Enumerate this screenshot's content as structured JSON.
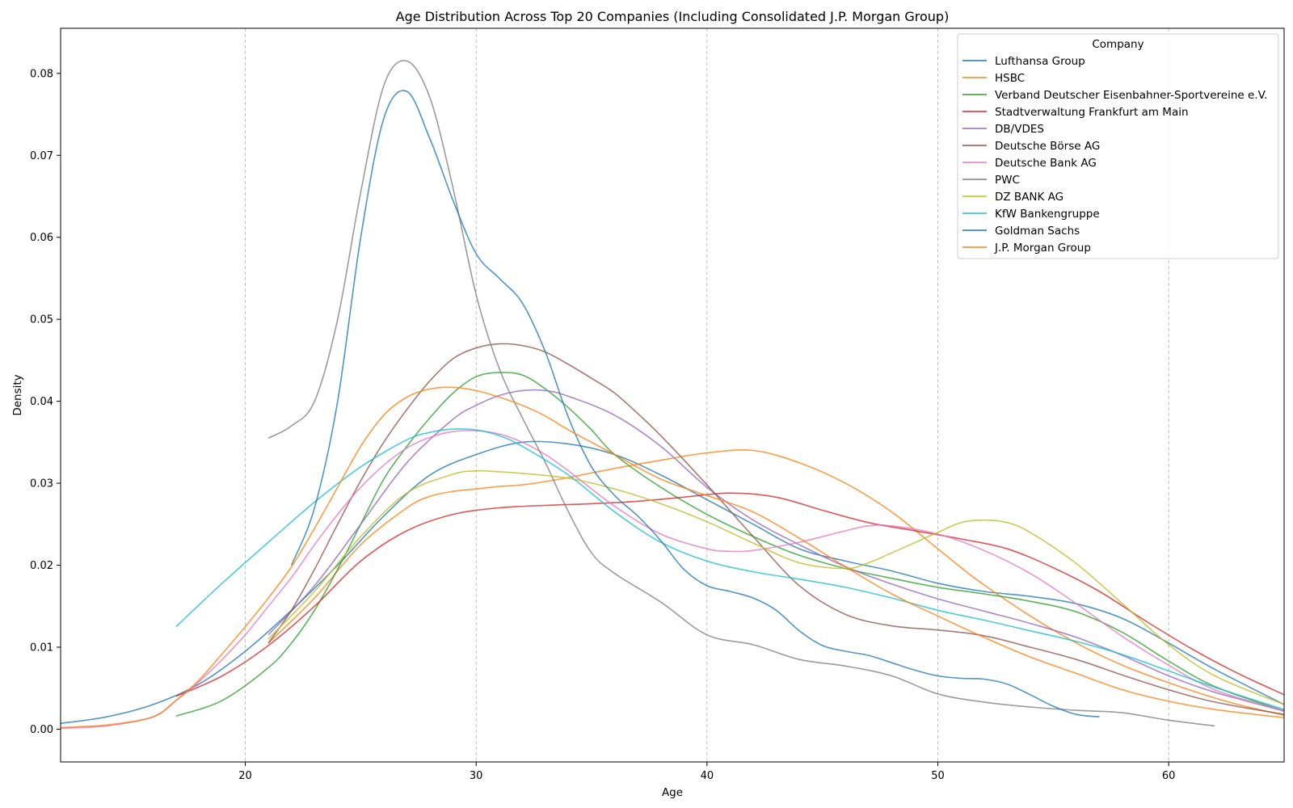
{
  "chart_data": {
    "type": "line",
    "title": "Age Distribution Across Top 20 Companies (Including Consolidated J.P. Morgan Group)",
    "xlabel": "Age",
    "ylabel": "Density",
    "xlim": [
      12,
      65
    ],
    "ylim": [
      -0.004,
      0.0855
    ],
    "xticks": [
      20,
      30,
      40,
      50,
      60
    ],
    "yticks": [
      0.0,
      0.01,
      0.02,
      0.03,
      0.04,
      0.05,
      0.06,
      0.07,
      0.08
    ],
    "grid": "x-dashed",
    "legend_title": "Company",
    "legend_position": "top-right",
    "series": [
      {
        "name": "Lufthansa Group",
        "color": "#1f77b4",
        "x": [
          12,
          14,
          16,
          18,
          20,
          22,
          24,
          26,
          28,
          30,
          32,
          34,
          36,
          38,
          40,
          42,
          44,
          46,
          48,
          50,
          52,
          54,
          56,
          58,
          60,
          62,
          65
        ],
        "y": [
          0.0007,
          0.0015,
          0.003,
          0.0055,
          0.0095,
          0.0145,
          0.02,
          0.026,
          0.031,
          0.0335,
          0.035,
          0.0348,
          0.0335,
          0.031,
          0.028,
          0.025,
          0.022,
          0.0205,
          0.0193,
          0.0178,
          0.0168,
          0.0162,
          0.0153,
          0.0135,
          0.0105,
          0.0073,
          0.003
        ]
      },
      {
        "name": "HSBC",
        "color": "#ff7f0e",
        "x": [
          21,
          23,
          25,
          27,
          28,
          29,
          30,
          31,
          32,
          33,
          34,
          36,
          38,
          40,
          42,
          44,
          46,
          48,
          50,
          52,
          55,
          58,
          62,
          65
        ],
        "y": [
          0.0105,
          0.016,
          0.0225,
          0.027,
          0.0284,
          0.029,
          0.0293,
          0.0296,
          0.0298,
          0.0302,
          0.0307,
          0.0318,
          0.0328,
          0.0337,
          0.034,
          0.0325,
          0.03,
          0.0265,
          0.022,
          0.0176,
          0.0121,
          0.0078,
          0.0038,
          0.0017
        ]
      },
      {
        "name": "Verband Deutscher Eisenbahner-Sportvereine e.V.",
        "color": "#2ca02c",
        "x": [
          17,
          19,
          21,
          22,
          23,
          24,
          25,
          26,
          27,
          28,
          29,
          30,
          31,
          32,
          33,
          34,
          35,
          36,
          38,
          40,
          42,
          44,
          46,
          48,
          50,
          52,
          54,
          56,
          58,
          60,
          62,
          65
        ],
        "y": [
          0.0016,
          0.0035,
          0.0075,
          0.0105,
          0.0145,
          0.0195,
          0.025,
          0.0305,
          0.0345,
          0.038,
          0.041,
          0.043,
          0.0435,
          0.0432,
          0.0415,
          0.0392,
          0.0365,
          0.0335,
          0.0295,
          0.0262,
          0.0235,
          0.0212,
          0.0196,
          0.0184,
          0.0173,
          0.0165,
          0.0156,
          0.0143,
          0.0118,
          0.0083,
          0.0052,
          0.0022
        ]
      },
      {
        "name": "Stadtverwaltung Frankfurt am Main",
        "color": "#d62728",
        "x": [
          17,
          19,
          21,
          23,
          25,
          27,
          29,
          31,
          33,
          35,
          37,
          39,
          41,
          43,
          45,
          47,
          49,
          51,
          53,
          55,
          57,
          59,
          61,
          63,
          65
        ],
        "y": [
          0.004,
          0.0065,
          0.0102,
          0.015,
          0.0205,
          0.0242,
          0.0262,
          0.027,
          0.0273,
          0.0275,
          0.0278,
          0.0283,
          0.0288,
          0.0283,
          0.0267,
          0.0252,
          0.0242,
          0.0232,
          0.022,
          0.0197,
          0.0168,
          0.0132,
          0.0098,
          0.0068,
          0.0042
        ]
      },
      {
        "name": "DB/VDES",
        "color": "#9467bd",
        "x": [
          21,
          23,
          25,
          27,
          29,
          30,
          31,
          32,
          33,
          34,
          36,
          38,
          40,
          42,
          44,
          46,
          48,
          50,
          52,
          54,
          56,
          58,
          60,
          62,
          65
        ],
        "y": [
          0.0115,
          0.0175,
          0.025,
          0.0325,
          0.0378,
          0.0395,
          0.0407,
          0.0413,
          0.0413,
          0.0406,
          0.0383,
          0.0345,
          0.0295,
          0.0255,
          0.0225,
          0.0198,
          0.0177,
          0.0159,
          0.0144,
          0.0129,
          0.0112,
          0.009,
          0.0065,
          0.0045,
          0.0022
        ]
      },
      {
        "name": "Deutsche Börse AG",
        "color": "#8c564b",
        "x": [
          21,
          22,
          23,
          24,
          25,
          26,
          27,
          28,
          29,
          30,
          31,
          32,
          33,
          34,
          35,
          36,
          37,
          38,
          40,
          42,
          44,
          46,
          48,
          50,
          52,
          54,
          56,
          58,
          60,
          62,
          65
        ],
        "y": [
          0.0105,
          0.0145,
          0.0195,
          0.025,
          0.0303,
          0.035,
          0.039,
          0.0425,
          0.0452,
          0.0465,
          0.047,
          0.0468,
          0.046,
          0.0445,
          0.0428,
          0.041,
          0.0385,
          0.0358,
          0.0298,
          0.0235,
          0.0175,
          0.014,
          0.0126,
          0.0121,
          0.0114,
          0.01,
          0.0085,
          0.0066,
          0.0048,
          0.0033,
          0.0018
        ]
      },
      {
        "name": "Deutsche Bank AG",
        "color": "#e377c2",
        "x": [
          12,
          14,
          16,
          17,
          18,
          19,
          20,
          21,
          22,
          23,
          24,
          25,
          26,
          27,
          28,
          29,
          30,
          31,
          32,
          33,
          34,
          36,
          38,
          40,
          41,
          42,
          44,
          46,
          47,
          48,
          50,
          52,
          54,
          56,
          58,
          60,
          62,
          65
        ],
        "y": [
          0.0001,
          0.0004,
          0.0015,
          0.0035,
          0.0058,
          0.0085,
          0.0115,
          0.015,
          0.0185,
          0.0225,
          0.0262,
          0.0295,
          0.0322,
          0.0343,
          0.0356,
          0.0363,
          0.0364,
          0.036,
          0.035,
          0.0335,
          0.0315,
          0.0272,
          0.0238,
          0.022,
          0.0217,
          0.0218,
          0.0228,
          0.0242,
          0.0248,
          0.0248,
          0.0238,
          0.0218,
          0.019,
          0.0153,
          0.0113,
          0.0078,
          0.0048,
          0.0022
        ]
      },
      {
        "name": "PWC",
        "color": "#7f7f7f",
        "x": [
          21,
          22,
          23,
          24,
          25,
          26,
          27,
          28,
          29,
          30,
          31,
          32,
          33,
          34,
          35,
          36,
          38,
          40,
          42,
          44,
          46,
          48,
          50,
          52,
          54,
          56,
          58,
          60,
          62
        ],
        "y": [
          0.0355,
          0.037,
          0.04,
          0.05,
          0.0655,
          0.0785,
          0.0815,
          0.077,
          0.066,
          0.053,
          0.044,
          0.038,
          0.0325,
          0.0265,
          0.0215,
          0.019,
          0.0155,
          0.0115,
          0.0103,
          0.0085,
          0.0077,
          0.0065,
          0.0043,
          0.0033,
          0.0027,
          0.0023,
          0.002,
          0.0011,
          0.0004
        ]
      },
      {
        "name": "DZ BANK AG",
        "color": "#bcbd22",
        "x": [
          21,
          23,
          25,
          27,
          29,
          30,
          31,
          32,
          34,
          36,
          38,
          40,
          42,
          44,
          46,
          47,
          48,
          50,
          51,
          52,
          53,
          54,
          56,
          58,
          60,
          62,
          65
        ],
        "y": [
          0.011,
          0.0168,
          0.0235,
          0.0288,
          0.0311,
          0.0315,
          0.0314,
          0.0312,
          0.0306,
          0.0293,
          0.0275,
          0.0253,
          0.0227,
          0.0203,
          0.0196,
          0.0203,
          0.0215,
          0.024,
          0.0252,
          0.0255,
          0.0252,
          0.024,
          0.0202,
          0.0153,
          0.0103,
          0.0065,
          0.003
        ]
      },
      {
        "name": "KfW Bankengruppe",
        "color": "#17becf",
        "x": [
          17,
          19,
          21,
          23,
          25,
          27,
          28,
          29,
          30,
          31,
          32,
          34,
          36,
          38,
          40,
          42,
          44,
          46,
          48,
          50,
          52,
          54,
          56,
          58,
          60,
          62,
          65
        ],
        "y": [
          0.0125,
          0.0178,
          0.0228,
          0.0277,
          0.032,
          0.0353,
          0.0362,
          0.0366,
          0.0365,
          0.0358,
          0.0345,
          0.031,
          0.0265,
          0.0228,
          0.0205,
          0.0192,
          0.0183,
          0.0173,
          0.016,
          0.0145,
          0.0133,
          0.012,
          0.0107,
          0.0091,
          0.0071,
          0.0051,
          0.0024
        ]
      },
      {
        "name": "Goldman Sachs",
        "color": "#1f77b4",
        "x": [
          22,
          23,
          24,
          25,
          26,
          27,
          28,
          29,
          30,
          31,
          32,
          33,
          34,
          35,
          36,
          37,
          38,
          39,
          40,
          41,
          42,
          43,
          44,
          45,
          46,
          47,
          48,
          49,
          50,
          51,
          52,
          53,
          54,
          55,
          56,
          57
        ],
        "y": [
          0.02,
          0.027,
          0.04,
          0.06,
          0.0745,
          0.0778,
          0.072,
          0.0645,
          0.058,
          0.055,
          0.052,
          0.046,
          0.038,
          0.032,
          0.0285,
          0.026,
          0.023,
          0.0195,
          0.0175,
          0.0168,
          0.016,
          0.0145,
          0.012,
          0.0102,
          0.0095,
          0.009,
          0.0081,
          0.0072,
          0.0065,
          0.0062,
          0.0061,
          0.0055,
          0.0042,
          0.0028,
          0.0018,
          0.0015
        ]
      },
      {
        "name": "J.P. Morgan Group",
        "color": "#ff7f0e",
        "x": [
          12,
          14,
          16,
          17,
          18,
          19,
          20,
          21,
          22,
          23,
          24,
          25,
          26,
          27,
          28,
          29,
          30,
          31,
          32,
          33,
          34,
          36,
          38,
          40,
          42,
          44,
          46,
          48,
          50,
          52,
          54,
          56,
          58,
          60,
          62,
          65
        ],
        "y": [
          0.0002,
          0.0005,
          0.0015,
          0.0035,
          0.006,
          0.0092,
          0.0125,
          0.016,
          0.0198,
          0.0245,
          0.0295,
          0.0345,
          0.0383,
          0.0405,
          0.0415,
          0.0417,
          0.0413,
          0.0405,
          0.0395,
          0.0382,
          0.0365,
          0.0335,
          0.0305,
          0.0285,
          0.0265,
          0.0233,
          0.0198,
          0.0165,
          0.0138,
          0.0112,
          0.0088,
          0.0068,
          0.0048,
          0.0034,
          0.0024,
          0.0014
        ]
      }
    ]
  }
}
